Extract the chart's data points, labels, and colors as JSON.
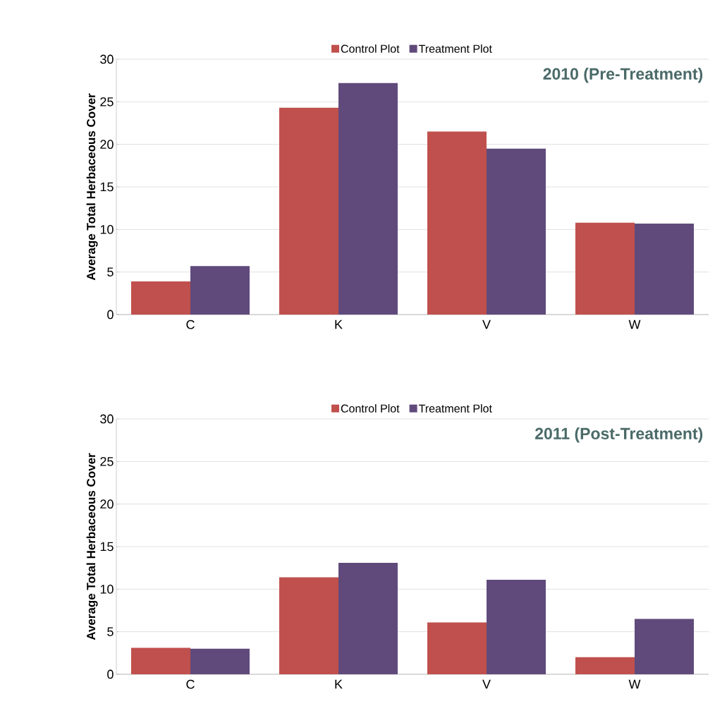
{
  "chart_data": [
    {
      "type": "bar",
      "title": "2010 (Pre-Treatment)",
      "ylabel": "Average Total Herbaceous Cover",
      "categories": [
        "C",
        "K",
        "V",
        "W"
      ],
      "series": [
        {
          "name": "Control Plot",
          "color": "#c0504d",
          "values": [
            3.9,
            24.3,
            21.5,
            10.8
          ]
        },
        {
          "name": "Treatment Plot",
          "color": "#604a7b",
          "values": [
            5.7,
            27.2,
            19.5,
            10.7
          ]
        }
      ],
      "ylim": [
        0,
        30
      ],
      "yticks": [
        0,
        5,
        10,
        15,
        20,
        25,
        30
      ],
      "grid": "y",
      "legend": "top"
    },
    {
      "type": "bar",
      "title": "2011 (Post-Treatment)",
      "ylabel": "Average Total Herbaceous Cover",
      "categories": [
        "C",
        "K",
        "V",
        "W"
      ],
      "series": [
        {
          "name": "Control Plot",
          "color": "#c0504d",
          "values": [
            3.1,
            11.4,
            6.1,
            2.0
          ]
        },
        {
          "name": "Treatment Plot",
          "color": "#604a7b",
          "values": [
            3.0,
            13.1,
            11.1,
            6.5
          ]
        }
      ],
      "ylim": [
        0,
        30
      ],
      "yticks": [
        0,
        5,
        10,
        15,
        20,
        25,
        30
      ],
      "grid": "y",
      "legend": "top"
    }
  ]
}
